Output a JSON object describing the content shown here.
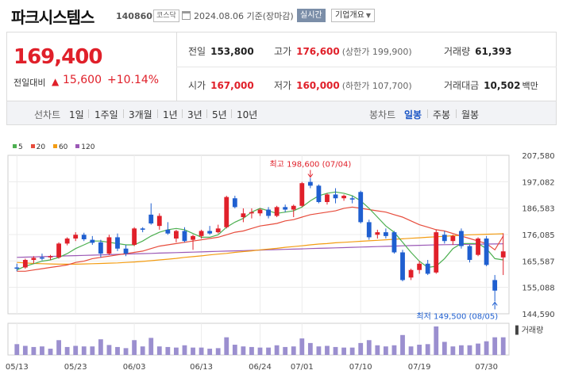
{
  "header": {
    "name": "파크시스템스",
    "code": "140860",
    "market": "코스닥",
    "date": "2024.08.06  기준(장마감)",
    "realtime_label": "실시간",
    "company_info_label": "기업개요"
  },
  "price": {
    "current": "169,400",
    "change_label": "전일대비",
    "change_value": "15,600",
    "change_pct": "+10.14%",
    "up_color": "#e0202a"
  },
  "stats": {
    "prev_close": {
      "label": "전일",
      "value": "153,800"
    },
    "high": {
      "label": "고가",
      "value": "176,600",
      "sub": "(상한가 199,900)"
    },
    "volume": {
      "label": "거래량",
      "value": "61,393"
    },
    "open": {
      "label": "시가",
      "value": "167,000"
    },
    "low": {
      "label": "저가",
      "value": "160,000",
      "sub": "(하한가 107,700)"
    },
    "amount": {
      "label": "거래대금",
      "value": "10,502",
      "unit": "백만"
    }
  },
  "periods": {
    "line_label": "선차트",
    "line_items": [
      "1일",
      "1주일",
      "3개월",
      "1년",
      "3년",
      "5년",
      "10년"
    ],
    "candle_label": "봉차트",
    "candle_items": [
      "일봉",
      "주봉",
      "월봉"
    ],
    "active_candle": "일봉"
  },
  "chart_data": {
    "type": "candlestick",
    "legend": [
      {
        "name": "5",
        "color": "#4caf50"
      },
      {
        "name": "20",
        "color": "#e74c3c"
      },
      {
        "name": "60",
        "color": "#f39c12"
      },
      {
        "name": "120",
        "color": "#9b59b6"
      }
    ],
    "y_ticks": [
      "207,580",
      "197,082",
      "186,583",
      "176,085",
      "165,587",
      "155,088",
      "144,590"
    ],
    "ylim": [
      144590,
      207580
    ],
    "x_labels": [
      {
        "label": "05/13",
        "index": 0
      },
      {
        "label": "05/23",
        "index": 7
      },
      {
        "label": "06/03",
        "index": 14
      },
      {
        "label": "06/13",
        "index": 22
      },
      {
        "label": "06/24",
        "index": 29
      },
      {
        "label": "07/01",
        "index": 34
      },
      {
        "label": "07/10",
        "index": 41
      },
      {
        "label": "07/19",
        "index": 48
      },
      {
        "label": "07/30",
        "index": 56
      }
    ],
    "high_annotation": "최고 198,600 (07/04)",
    "low_annotation": "최저 149,500 (08/05)",
    "volume_label": "거래량",
    "up_color": "#e0202a",
    "down_color": "#1f5fd0",
    "candles": [
      {
        "o": 163000,
        "h": 164500,
        "l": 161500,
        "c": 162500
      },
      {
        "o": 163000,
        "h": 166500,
        "l": 162500,
        "c": 166000
      },
      {
        "o": 166000,
        "h": 167500,
        "l": 164500,
        "c": 166800
      },
      {
        "o": 167000,
        "h": 168500,
        "l": 165800,
        "c": 166500
      },
      {
        "o": 167000,
        "h": 168000,
        "l": 166000,
        "c": 167500
      },
      {
        "o": 167000,
        "h": 173000,
        "l": 166500,
        "c": 172500
      },
      {
        "o": 172500,
        "h": 175000,
        "l": 171800,
        "c": 174500
      },
      {
        "o": 174500,
        "h": 177000,
        "l": 173500,
        "c": 176000
      },
      {
        "o": 176000,
        "h": 176800,
        "l": 173500,
        "c": 174200
      },
      {
        "o": 174000,
        "h": 175500,
        "l": 172000,
        "c": 172800
      },
      {
        "o": 173000,
        "h": 174000,
        "l": 167000,
        "c": 168500
      },
      {
        "o": 168500,
        "h": 176000,
        "l": 168000,
        "c": 175000
      },
      {
        "o": 175000,
        "h": 176500,
        "l": 169500,
        "c": 170500
      },
      {
        "o": 170500,
        "h": 172000,
        "l": 167500,
        "c": 168500
      },
      {
        "o": 172000,
        "h": 179000,
        "l": 171500,
        "c": 178500
      },
      {
        "o": 178500,
        "h": 179000,
        "l": 177000,
        "c": 178000
      },
      {
        "o": 184000,
        "h": 188500,
        "l": 180000,
        "c": 180500
      },
      {
        "o": 179500,
        "h": 184500,
        "l": 178000,
        "c": 183500
      },
      {
        "o": 178000,
        "h": 181000,
        "l": 176000,
        "c": 176500
      },
      {
        "o": 174500,
        "h": 178000,
        "l": 173000,
        "c": 177500
      },
      {
        "o": 177500,
        "h": 179000,
        "l": 173000,
        "c": 173500
      },
      {
        "o": 174000,
        "h": 176000,
        "l": 170000,
        "c": 175500
      },
      {
        "o": 175500,
        "h": 178000,
        "l": 174500,
        "c": 177500
      },
      {
        "o": 177500,
        "h": 179500,
        "l": 176000,
        "c": 176500
      },
      {
        "o": 177000,
        "h": 180000,
        "l": 176500,
        "c": 178500
      },
      {
        "o": 179000,
        "h": 191500,
        "l": 178500,
        "c": 191000
      },
      {
        "o": 190500,
        "h": 191500,
        "l": 186500,
        "c": 187000
      },
      {
        "o": 183000,
        "h": 186500,
        "l": 181000,
        "c": 184500
      },
      {
        "o": 184500,
        "h": 186500,
        "l": 182500,
        "c": 185000
      },
      {
        "o": 184500,
        "h": 186500,
        "l": 183500,
        "c": 186000
      },
      {
        "o": 186000,
        "h": 187000,
        "l": 182500,
        "c": 183500
      },
      {
        "o": 183500,
        "h": 187500,
        "l": 183000,
        "c": 187000
      },
      {
        "o": 187000,
        "h": 188000,
        "l": 185000,
        "c": 186000
      },
      {
        "o": 186000,
        "h": 188000,
        "l": 183000,
        "c": 187500
      },
      {
        "o": 187500,
        "h": 197000,
        "l": 187000,
        "c": 196500
      },
      {
        "o": 197000,
        "h": 198600,
        "l": 194500,
        "c": 195500
      },
      {
        "o": 195500,
        "h": 196000,
        "l": 188500,
        "c": 189000
      },
      {
        "o": 189000,
        "h": 192500,
        "l": 188000,
        "c": 192000
      },
      {
        "o": 192000,
        "h": 194500,
        "l": 188500,
        "c": 190500
      },
      {
        "o": 190500,
        "h": 192000,
        "l": 189500,
        "c": 191500
      },
      {
        "o": 190500,
        "h": 191500,
        "l": 188500,
        "c": 190000
      },
      {
        "o": 193000,
        "h": 193500,
        "l": 180500,
        "c": 181000
      },
      {
        "o": 181000,
        "h": 182000,
        "l": 174000,
        "c": 175000
      },
      {
        "o": 176000,
        "h": 178000,
        "l": 174500,
        "c": 177000
      },
      {
        "o": 177000,
        "h": 178500,
        "l": 174500,
        "c": 175500
      },
      {
        "o": 177000,
        "h": 177500,
        "l": 168500,
        "c": 169000
      },
      {
        "o": 169000,
        "h": 170000,
        "l": 157500,
        "c": 158000
      },
      {
        "o": 159000,
        "h": 162500,
        "l": 158000,
        "c": 162000
      },
      {
        "o": 162000,
        "h": 165500,
        "l": 160500,
        "c": 164500
      },
      {
        "o": 164500,
        "h": 166000,
        "l": 160000,
        "c": 160500
      },
      {
        "o": 161000,
        "h": 178000,
        "l": 160500,
        "c": 177000
      },
      {
        "o": 176000,
        "h": 177500,
        "l": 172500,
        "c": 173500
      },
      {
        "o": 173500,
        "h": 176000,
        "l": 172000,
        "c": 175500
      },
      {
        "o": 177500,
        "h": 178500,
        "l": 170500,
        "c": 171500
      },
      {
        "o": 171500,
        "h": 172000,
        "l": 165000,
        "c": 166000
      },
      {
        "o": 168000,
        "h": 175000,
        "l": 167500,
        "c": 174500
      },
      {
        "o": 174500,
        "h": 175500,
        "l": 163500,
        "c": 164000
      },
      {
        "o": 158000,
        "h": 160000,
        "l": 149500,
        "c": 153800
      },
      {
        "o": 167000,
        "h": 176600,
        "l": 160000,
        "c": 169400
      }
    ],
    "ma5": [
      162000,
      163500,
      164500,
      165500,
      166000,
      167000,
      168500,
      170500,
      172000,
      173500,
      173500,
      173000,
      172500,
      172000,
      172000,
      173500,
      175500,
      177000,
      178000,
      178500,
      178000,
      176500,
      175000,
      175000,
      176000,
      179000,
      181000,
      182500,
      185000,
      186500,
      185500,
      184500,
      185000,
      185500,
      187000,
      189500,
      191500,
      192500,
      193000,
      192500,
      191500,
      189500,
      186500,
      183000,
      179500,
      177000,
      173000,
      169000,
      165500,
      163000,
      163500,
      166500,
      170500,
      172500,
      172500,
      172500,
      170500,
      166500,
      166000
    ],
    "ma20": [
      161500,
      161500,
      162000,
      162500,
      163000,
      163500,
      164000,
      165000,
      165500,
      166500,
      167000,
      167500,
      168000,
      168500,
      169000,
      169500,
      170500,
      171500,
      172000,
      172500,
      173000,
      173500,
      174000,
      174500,
      175000,
      176000,
      177000,
      177500,
      178500,
      179500,
      180000,
      180500,
      181500,
      182000,
      183000,
      184000,
      184500,
      185000,
      185500,
      186500,
      187000,
      186500,
      186000,
      185500,
      185000,
      184000,
      183000,
      181500,
      180000,
      179000,
      178000,
      177500,
      176500,
      175500,
      174500,
      173500,
      172500,
      170000,
      175500
    ],
    "ma60": [
      165000,
      164800,
      164600,
      164500,
      164400,
      164300,
      164300,
      164300,
      164400,
      164500,
      164600,
      164700,
      164800,
      165000,
      165200,
      165400,
      165700,
      166000,
      166300,
      166600,
      167000,
      167300,
      167600,
      168000,
      168300,
      168600,
      169000,
      169300,
      169600,
      170000,
      170300,
      170600,
      171000,
      171300,
      171600,
      172000,
      172300,
      172500,
      172800,
      173000,
      173200,
      173400,
      173600,
      173800,
      174000,
      174200,
      174400,
      174600,
      174800,
      175000,
      175200,
      175400,
      175600,
      175800,
      176000,
      176100,
      176200,
      176300,
      176400
    ],
    "ma120": [
      167000,
      167100,
      167200,
      167300,
      167400,
      167500,
      167600,
      167700,
      167800,
      167900,
      168000,
      168100,
      168200,
      168300,
      168400,
      168500,
      168600,
      168700,
      168800,
      168900,
      169000,
      169100,
      169200,
      169300,
      169400,
      169500,
      169600,
      169700,
      169800,
      169900,
      170000,
      170100,
      170200,
      170300,
      170400,
      170500,
      170600,
      170700,
      170800,
      170900,
      171000,
      171100,
      171200,
      171300,
      171400,
      171500,
      171600,
      171700,
      171800,
      171900,
      172000,
      172050,
      172100,
      172150,
      172200,
      172250,
      172300,
      172350,
      172400
    ],
    "volume": [
      38,
      32,
      28,
      30,
      22,
      52,
      28,
      32,
      30,
      30,
      55,
      35,
      28,
      24,
      52,
      30,
      60,
      30,
      28,
      26,
      34,
      26,
      26,
      22,
      24,
      62,
      36,
      30,
      28,
      26,
      26,
      34,
      28,
      30,
      58,
      42,
      30,
      32,
      28,
      26,
      26,
      42,
      52,
      34,
      30,
      34,
      70,
      30,
      36,
      38,
      100,
      46,
      30,
      34,
      34,
      40,
      48,
      62,
      62
    ]
  }
}
